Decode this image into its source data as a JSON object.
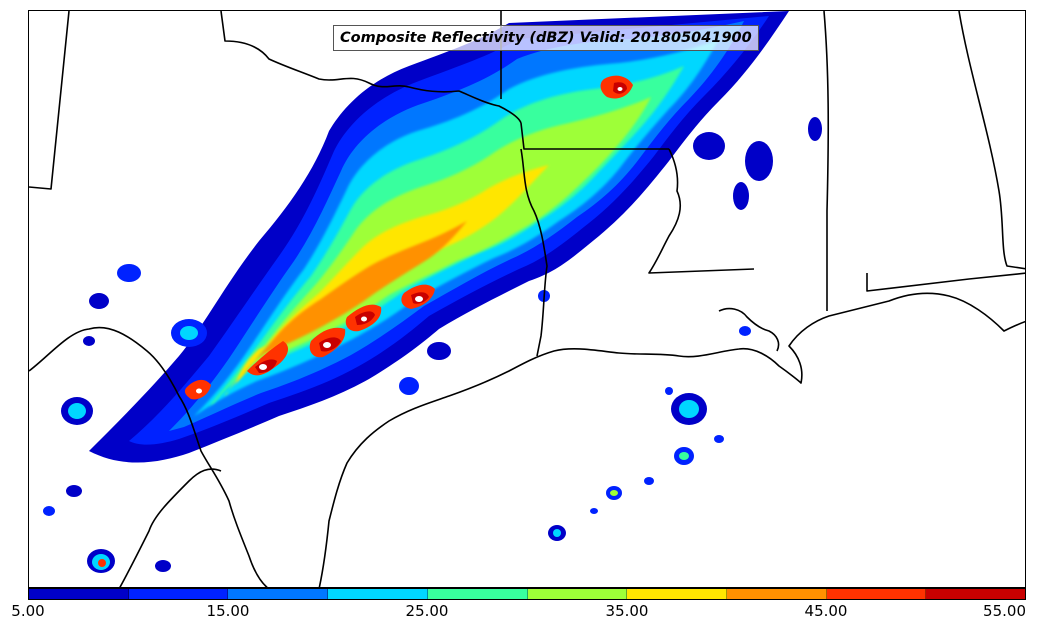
{
  "title": "Composite Reflectivity (dBZ) Valid: 201805041900",
  "colorbar": {
    "colors": [
      "#0000c8",
      "#0022ff",
      "#0077ff",
      "#00d7ff",
      "#38ff9e",
      "#9eff38",
      "#ffe600",
      "#ff9100",
      "#ff3200",
      "#c80000"
    ],
    "tick_labels": [
      "5.00",
      "15.00",
      "25.00",
      "35.00",
      "45.00",
      "55.00"
    ]
  },
  "palette": {
    "border_line": "#000000",
    "core_white": "#ffffff"
  }
}
